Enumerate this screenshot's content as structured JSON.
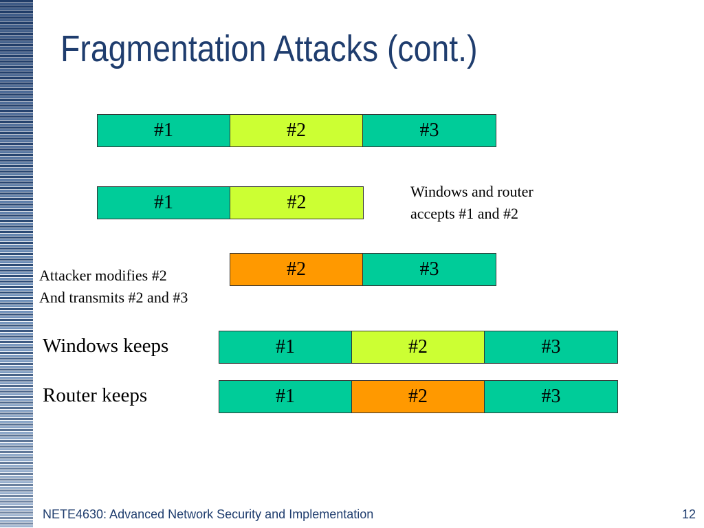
{
  "slide": {
    "title": "Fragmentation Attacks (cont.)",
    "footer": "NETE4630: Advanced Network Security and Implementation",
    "page_number": "12"
  },
  "colors": {
    "original_fragment": "#00cc99",
    "fragment_2_original": "#ccff33",
    "fragment_2_modified": "#ff9900",
    "title_color": "#1f3d6e"
  },
  "rows": {
    "original": [
      "#1",
      "#2",
      "#3"
    ],
    "accepted": [
      "#1",
      "#2"
    ],
    "attacker": [
      "#2",
      "#3"
    ],
    "windows": [
      "#1",
      "#2",
      "#3"
    ],
    "router": [
      "#1",
      "#2",
      "#3"
    ]
  },
  "notes": {
    "accepted_line1": "Windows and router",
    "accepted_line2": "accepts #1 and #2",
    "attacker_line1": "Attacker modifies #2",
    "attacker_line2": "And transmits #2 and #3",
    "windows_keeps": "Windows keeps",
    "router_keeps": "Router keeps"
  }
}
